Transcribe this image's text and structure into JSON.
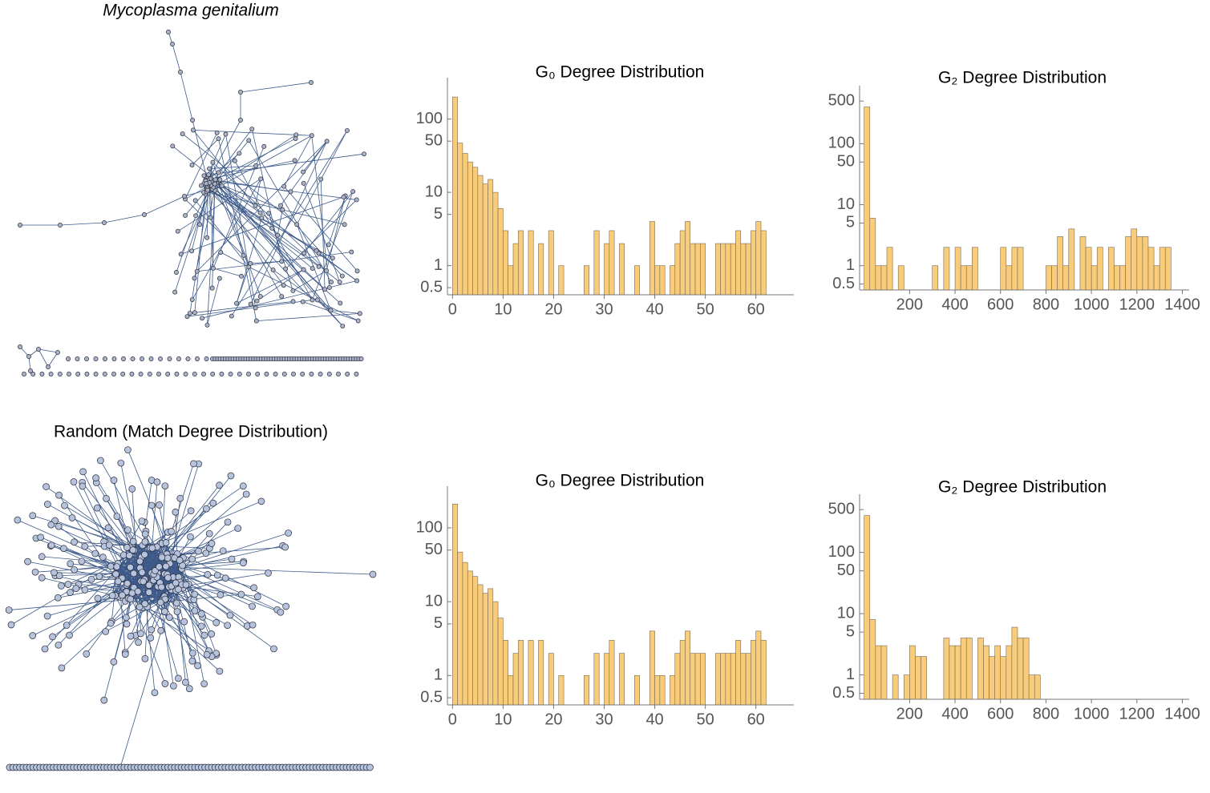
{
  "chart_data": [
    {
      "type": "network",
      "title": "Mycoplasma genitalium"
    },
    {
      "type": "histogram",
      "title": "G₀ Degree Distribution",
      "color": "#f9cc79",
      "log_y": true,
      "bins": [
        0,
        1,
        2,
        3,
        4,
        5,
        6,
        7,
        8,
        9,
        10,
        11,
        12,
        13,
        14,
        15,
        16,
        17,
        18,
        19,
        20,
        21,
        22,
        23,
        24,
        25,
        26,
        27,
        28,
        29,
        30,
        31,
        32,
        33,
        34,
        35,
        36,
        37,
        38,
        39,
        40,
        41,
        42,
        43,
        44,
        45,
        46,
        47,
        48,
        49,
        50,
        51,
        52,
        53,
        54,
        55,
        56,
        57,
        58,
        59,
        60,
        61,
        62
      ],
      "values": [
        200,
        47,
        34,
        26,
        22,
        17,
        13,
        15,
        10,
        6,
        3,
        1,
        2,
        3,
        0,
        3,
        0,
        2,
        0,
        3,
        0,
        1,
        0,
        0,
        0,
        0,
        1,
        0,
        3,
        0,
        2,
        3,
        0,
        2,
        0,
        0,
        1,
        0,
        0,
        4,
        1,
        1,
        0,
        1,
        2,
        3,
        4,
        2,
        2,
        2,
        0,
        0,
        2,
        2,
        2,
        2,
        3,
        2,
        2,
        3,
        4,
        3
      ],
      "xlim": [
        -1,
        67.5
      ],
      "xticks": [
        0,
        10,
        20,
        30,
        40,
        50,
        60
      ],
      "ylim": [
        0.4,
        300
      ],
      "yticks": [
        0.5,
        1,
        5,
        10,
        50,
        100
      ]
    },
    {
      "type": "histogram",
      "title": "G₂ Degree Distribution",
      "color": "#f9cc79",
      "log_y": true,
      "bins": [
        0,
        25,
        50,
        75,
        100,
        125,
        150,
        175,
        200,
        225,
        250,
        275,
        300,
        325,
        350,
        375,
        400,
        425,
        450,
        475,
        500,
        525,
        550,
        575,
        600,
        625,
        650,
        675,
        700,
        725,
        750,
        775,
        800,
        825,
        850,
        875,
        900,
        925,
        950,
        975,
        1000,
        1025,
        1050,
        1075,
        1100,
        1125,
        1150,
        1175,
        1200,
        1225,
        1250,
        1275,
        1300,
        1325,
        1350
      ],
      "values": [
        400,
        6,
        1,
        1,
        2,
        0,
        1,
        0,
        0,
        0,
        0,
        0,
        1,
        0,
        2,
        0,
        2,
        1,
        1,
        2,
        0,
        0,
        0,
        0,
        2,
        1,
        2,
        2,
        0,
        0,
        0,
        0,
        1,
        1,
        3,
        1,
        4,
        0,
        3,
        2,
        1,
        2,
        0,
        2,
        1,
        1,
        3,
        4,
        3,
        3,
        2,
        1,
        2,
        2
      ],
      "xlim": [
        -20,
        1430
      ],
      "xticks": [
        200,
        400,
        600,
        800,
        1000,
        1200,
        1400
      ],
      "ylim": [
        0.4,
        700
      ],
      "yticks": [
        0.5,
        1,
        5,
        10,
        50,
        100,
        500
      ]
    },
    {
      "type": "network",
      "title": "Random (Match Degree Distribution)"
    },
    {
      "type": "histogram",
      "title": "G₀ Degree Distribution",
      "color": "#f9cc79",
      "log_y": true,
      "bins": [
        0,
        1,
        2,
        3,
        4,
        5,
        6,
        7,
        8,
        9,
        10,
        11,
        12,
        13,
        14,
        15,
        16,
        17,
        18,
        19,
        20,
        21,
        22,
        23,
        24,
        25,
        26,
        27,
        28,
        29,
        30,
        31,
        32,
        33,
        34,
        35,
        36,
        37,
        38,
        39,
        40,
        41,
        42,
        43,
        44,
        45,
        46,
        47,
        48,
        49,
        50,
        51,
        52,
        53,
        54,
        55,
        56,
        57,
        58,
        59,
        60,
        61,
        62
      ],
      "values": [
        210,
        47,
        34,
        26,
        22,
        17,
        13,
        15,
        10,
        6,
        3,
        1,
        2,
        3,
        0,
        3,
        0,
        3,
        0,
        2,
        0,
        1,
        0,
        0,
        0,
        0,
        1,
        0,
        2,
        0,
        2,
        3,
        0,
        2,
        0,
        0,
        1,
        0,
        0,
        4,
        1,
        1,
        0,
        1,
        2,
        3,
        4,
        2,
        2,
        2,
        0,
        0,
        2,
        2,
        2,
        2,
        3,
        2,
        2,
        3,
        4,
        3
      ],
      "xlim": [
        -1,
        67.5
      ],
      "xticks": [
        0,
        10,
        20,
        30,
        40,
        50,
        60
      ],
      "ylim": [
        0.4,
        300
      ],
      "yticks": [
        0.5,
        1,
        5,
        10,
        50,
        100
      ]
    },
    {
      "type": "histogram",
      "title": "G₂ Degree Distribution",
      "color": "#f9cc79",
      "log_y": true,
      "bins": [
        0,
        25,
        50,
        75,
        100,
        125,
        150,
        175,
        200,
        225,
        250,
        275,
        300,
        325,
        350,
        375,
        400,
        425,
        450,
        475,
        500,
        525,
        550,
        575,
        600,
        625,
        650,
        675,
        700,
        725,
        750,
        775
      ],
      "values": [
        400,
        8,
        3,
        3,
        0,
        1,
        0,
        1,
        3,
        2,
        2,
        0,
        0,
        0,
        4,
        3,
        3,
        4,
        4,
        0,
        4,
        3,
        2,
        3,
        2,
        3,
        6,
        4,
        4,
        1,
        1
      ],
      "xlim": [
        -20,
        1430
      ],
      "xticks": [
        200,
        400,
        600,
        800,
        1000,
        1200,
        1400
      ],
      "ylim": [
        0.4,
        700
      ],
      "yticks": [
        0.5,
        1,
        5,
        10,
        50,
        100,
        500
      ]
    }
  ]
}
